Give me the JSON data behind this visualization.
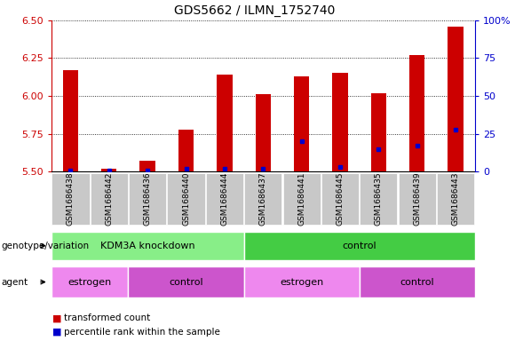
{
  "title": "GDS5662 / ILMN_1752740",
  "samples": [
    "GSM1686438",
    "GSM1686442",
    "GSM1686436",
    "GSM1686440",
    "GSM1686444",
    "GSM1686437",
    "GSM1686441",
    "GSM1686445",
    "GSM1686435",
    "GSM1686439",
    "GSM1686443"
  ],
  "transformed_count": [
    6.17,
    5.52,
    5.57,
    5.78,
    6.14,
    6.01,
    6.13,
    6.15,
    6.02,
    6.27,
    6.46
  ],
  "percentile_rank": [
    1,
    1,
    1,
    2,
    2,
    2,
    20,
    3,
    15,
    17,
    28
  ],
  "y_min": 5.5,
  "y_max": 6.5,
  "y_ticks_left": [
    5.5,
    5.75,
    6.0,
    6.25,
    6.5
  ],
  "y_ticks_right_vals": [
    0,
    25,
    50,
    75,
    100
  ],
  "y_ticks_right_labels": [
    "0",
    "25",
    "50",
    "75",
    "100%"
  ],
  "bar_color": "#cc0000",
  "dot_color": "#0000cc",
  "bar_width": 0.4,
  "genotype_groups": [
    {
      "label": "KDM3A knockdown",
      "start": 0,
      "end": 4,
      "color": "#88ee88"
    },
    {
      "label": "control",
      "start": 5,
      "end": 10,
      "color": "#44cc44"
    }
  ],
  "agent_groups": [
    {
      "label": "estrogen",
      "start": 0,
      "end": 1,
      "color": "#ee88ee"
    },
    {
      "label": "control",
      "start": 2,
      "end": 4,
      "color": "#cc55cc"
    },
    {
      "label": "estrogen",
      "start": 5,
      "end": 7,
      "color": "#ee88ee"
    },
    {
      "label": "control",
      "start": 8,
      "end": 10,
      "color": "#cc55cc"
    }
  ],
  "legend_items": [
    {
      "label": "transformed count",
      "color": "#cc0000"
    },
    {
      "label": "percentile rank within the sample",
      "color": "#0000cc"
    }
  ],
  "title_fontsize": 10,
  "sample_label_fontsize": 6.5,
  "annotation_fontsize": 8,
  "row_label_fontsize": 7.5,
  "legend_fontsize": 7.5,
  "plot_bg_color": "#ffffff",
  "sample_bg_color": "#c8c8c8",
  "geno_row_label": "genotype/variation",
  "agent_row_label": "agent"
}
